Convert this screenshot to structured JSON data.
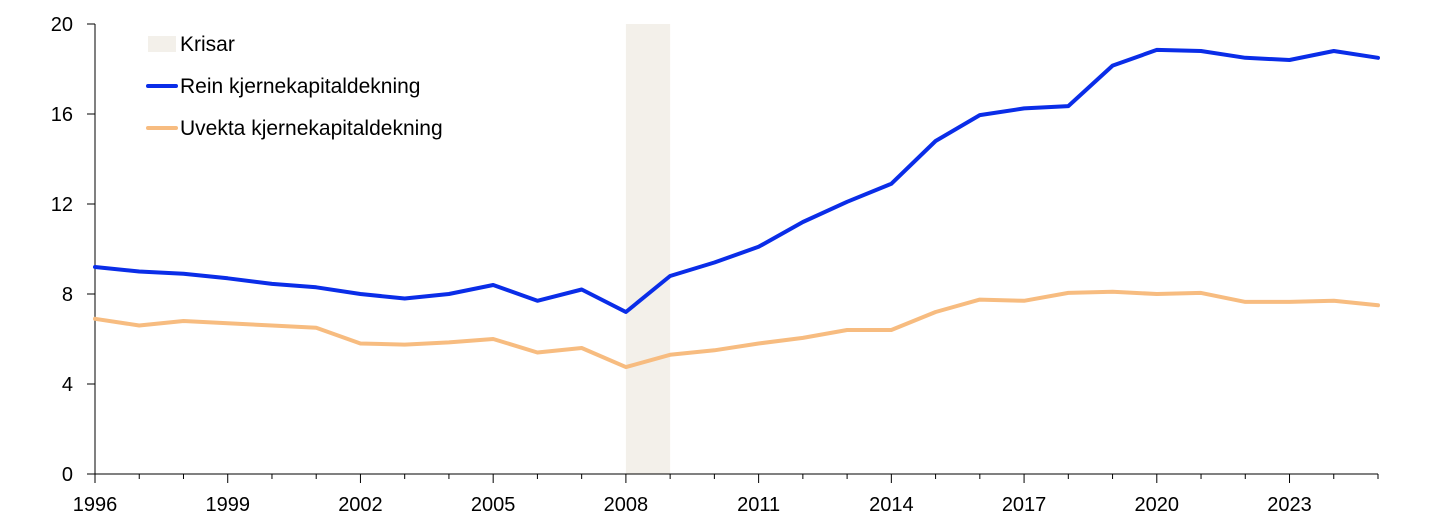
{
  "chart_data": {
    "type": "line",
    "x": [
      1996,
      1997,
      1998,
      1999,
      2000,
      2001,
      2002,
      2003,
      2004,
      2005,
      2006,
      2007,
      2008,
      2009,
      2010,
      2011,
      2012,
      2013,
      2014,
      2015,
      2016,
      2017,
      2018,
      2019,
      2020,
      2021,
      2022,
      2023,
      2024,
      2025
    ],
    "series": [
      {
        "name": "Rein kjernekapitaldekning",
        "color": "#0a2de8",
        "values": [
          9.2,
          9.0,
          8.9,
          8.7,
          8.45,
          8.3,
          8.0,
          7.8,
          8.0,
          8.4,
          7.7,
          8.2,
          7.2,
          8.8,
          9.4,
          10.1,
          11.2,
          12.1,
          12.9,
          14.8,
          15.95,
          16.25,
          16.35,
          18.15,
          18.85,
          18.8,
          18.5,
          18.4,
          18.8,
          18.5
        ]
      },
      {
        "name": "Uvekta kjernekapitaldekning",
        "color": "#f7bc80",
        "values": [
          6.9,
          6.6,
          6.8,
          6.7,
          6.6,
          6.5,
          5.8,
          5.75,
          5.85,
          6.0,
          5.4,
          5.6,
          4.75,
          5.3,
          5.5,
          5.8,
          6.05,
          6.4,
          6.4,
          7.2,
          7.75,
          7.7,
          8.05,
          8.1,
          8.0,
          8.05,
          7.65,
          7.65,
          7.7,
          7.5
        ]
      }
    ],
    "crisis_periods": [
      [
        2008,
        2009
      ]
    ],
    "crisis_color": "#f3f0ea",
    "legend": [
      {
        "label": "Krisar",
        "kind": "patch",
        "color": "#f3f0ea"
      },
      {
        "label": "Rein kjernekapitaldekning",
        "kind": "line",
        "color": "#0a2de8"
      },
      {
        "label": "Uvekta kjernekapitaldekning",
        "kind": "line",
        "color": "#f7bc80"
      }
    ],
    "legend_position": "top-left",
    "x_ticks": [
      1996,
      1999,
      2002,
      2005,
      2008,
      2011,
      2014,
      2017,
      2020,
      2023
    ],
    "xlim": [
      1996,
      2025
    ],
    "ylim": [
      0,
      20
    ],
    "y_ticks": [
      0,
      4,
      8,
      12,
      16,
      20
    ],
    "title": "",
    "xlabel": "",
    "ylabel": "",
    "grid": false
  }
}
